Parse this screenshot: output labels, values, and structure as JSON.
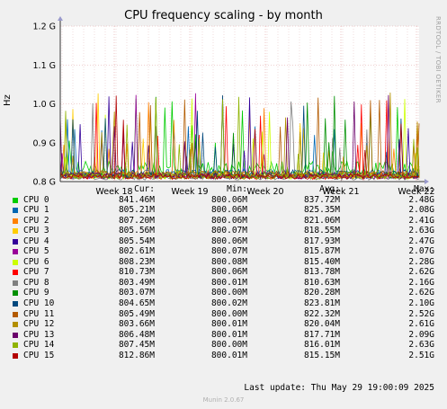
{
  "chart_data": {
    "type": "line",
    "title": "CPU frequency scaling - by month",
    "ylabel": "Hz",
    "vendor": "RRDTOOL / TOBI OETIKER",
    "ylim": [
      0.8,
      1.2
    ],
    "yticks": [
      {
        "label": "1.2 G",
        "value": 1.2
      },
      {
        "label": "1.1 G",
        "value": 1.1
      },
      {
        "label": "1.0 G",
        "value": 1.0
      },
      {
        "label": "0.9 G",
        "value": 0.9
      },
      {
        "label": "0.8 G",
        "value": 0.8
      }
    ],
    "xticks": [
      "Week 18",
      "Week 19",
      "Week 20",
      "Week 21",
      "Week 22"
    ],
    "legend_header": {
      "cur": "Cur:",
      "min": "Min:",
      "avg": "Avg:",
      "max": "Max:"
    },
    "series": [
      {
        "name": "CPU 0",
        "color": "#00cc00",
        "cur": "841.46M",
        "min": "800.06M",
        "avg": "837.72M",
        "max": "2.48G"
      },
      {
        "name": "CPU 1",
        "color": "#0066b3",
        "cur": "805.21M",
        "min": "800.06M",
        "avg": "825.35M",
        "max": "2.08G"
      },
      {
        "name": "CPU 2",
        "color": "#ff8000",
        "cur": "807.20M",
        "min": "800.06M",
        "avg": "821.06M",
        "max": "2.41G"
      },
      {
        "name": "CPU 3",
        "color": "#ffcc00",
        "cur": "805.56M",
        "min": "800.07M",
        "avg": "818.55M",
        "max": "2.63G"
      },
      {
        "name": "CPU 4",
        "color": "#330099",
        "cur": "805.54M",
        "min": "800.06M",
        "avg": "817.93M",
        "max": "2.47G"
      },
      {
        "name": "CPU 5",
        "color": "#990099",
        "cur": "802.61M",
        "min": "800.07M",
        "avg": "815.87M",
        "max": "2.07G"
      },
      {
        "name": "CPU 6",
        "color": "#ccff00",
        "cur": "808.23M",
        "min": "800.08M",
        "avg": "815.40M",
        "max": "2.28G"
      },
      {
        "name": "CPU 7",
        "color": "#ff0000",
        "cur": "810.73M",
        "min": "800.06M",
        "avg": "813.78M",
        "max": "2.62G"
      },
      {
        "name": "CPU 8",
        "color": "#808080",
        "cur": "803.49M",
        "min": "800.01M",
        "avg": "810.63M",
        "max": "2.16G"
      },
      {
        "name": "CPU 9",
        "color": "#008f00",
        "cur": "803.07M",
        "min": "800.00M",
        "avg": "820.28M",
        "max": "2.62G"
      },
      {
        "name": "CPU 10",
        "color": "#00487d",
        "cur": "804.65M",
        "min": "800.02M",
        "avg": "823.81M",
        "max": "2.10G"
      },
      {
        "name": "CPU 11",
        "color": "#b35a00",
        "cur": "805.49M",
        "min": "800.00M",
        "avg": "822.32M",
        "max": "2.52G"
      },
      {
        "name": "CPU 12",
        "color": "#b38f00",
        "cur": "803.66M",
        "min": "800.01M",
        "avg": "820.04M",
        "max": "2.61G"
      },
      {
        "name": "CPU 13",
        "color": "#6b006b",
        "cur": "806.48M",
        "min": "800.01M",
        "avg": "817.71M",
        "max": "2.09G"
      },
      {
        "name": "CPU 14",
        "color": "#8fb300",
        "cur": "807.45M",
        "min": "800.00M",
        "avg": "816.01M",
        "max": "2.63G"
      },
      {
        "name": "CPU 15",
        "color": "#b30000",
        "cur": "812.86M",
        "min": "800.01M",
        "avg": "815.15M",
        "max": "2.51G"
      }
    ]
  },
  "footer": {
    "last_update": "Last update: Thu May 29 19:00:09 2025",
    "version": "Munin 2.0.67"
  }
}
